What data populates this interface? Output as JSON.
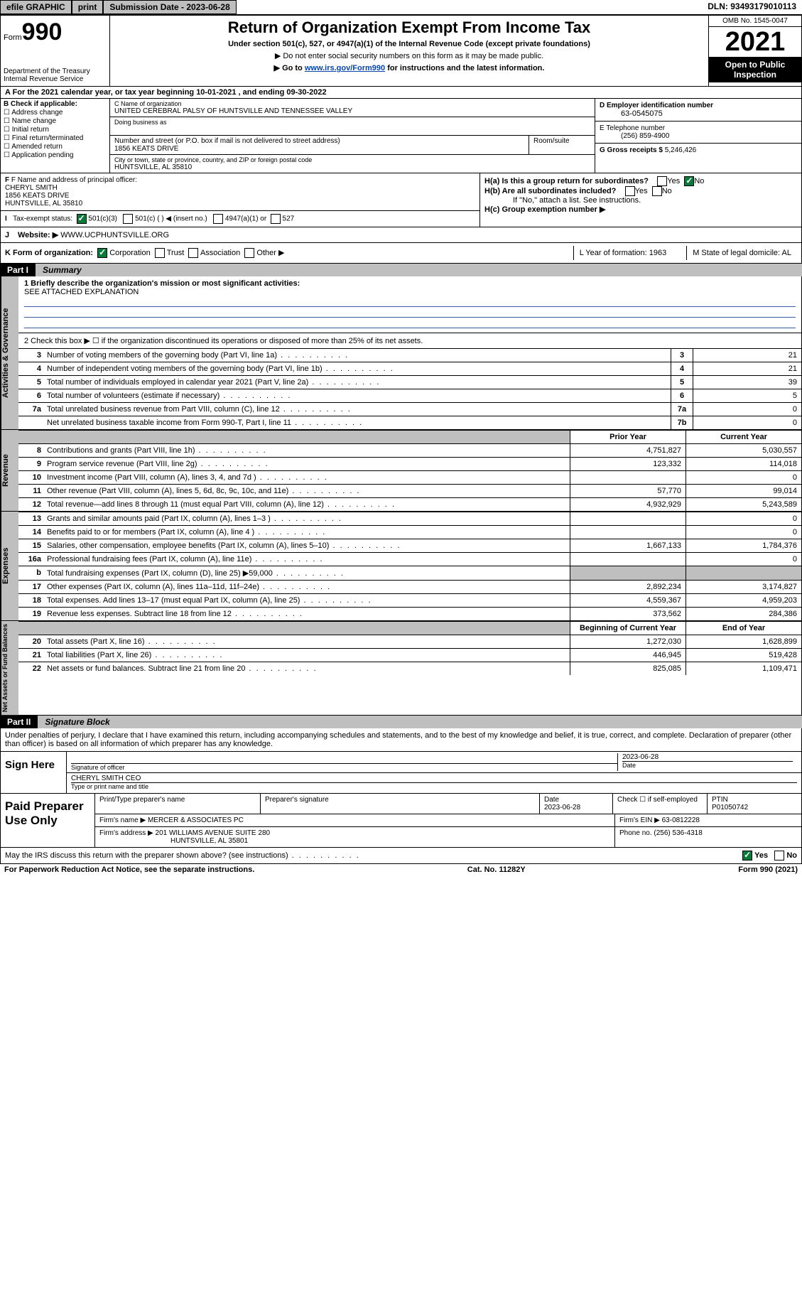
{
  "topbar": {
    "efile": "efile GRAPHIC",
    "print": "print",
    "submission": "Submission Date - 2023-06-28",
    "dln": "DLN: 93493179010113"
  },
  "header": {
    "form_word": "Form",
    "form_num": "990",
    "title": "Return of Organization Exempt From Income Tax",
    "subtitle": "Under section 501(c), 527, or 4947(a)(1) of the Internal Revenue Code (except private foundations)",
    "note1": "▶ Do not enter social security numbers on this form as it may be made public.",
    "note2_pre": "▶ Go to ",
    "note2_link": "www.irs.gov/Form990",
    "note2_post": " for instructions and the latest information.",
    "dept": "Department of the Treasury\nInternal Revenue Service",
    "omb": "OMB No. 1545-0047",
    "year": "2021",
    "open": "Open to Public Inspection"
  },
  "lineA": "A For the 2021 calendar year, or tax year beginning 10-01-2021   , and ending 09-30-2022",
  "sectionB": {
    "lbl": "B Check if applicable:",
    "chks": [
      "Address change",
      "Name change",
      "Initial return",
      "Final return/terminated",
      "Amended return",
      "Application pending"
    ],
    "c_lbl": "C Name of organization",
    "c_val": "UNITED CEREBRAL PALSY OF HUNTSVILLE AND TENNESSEE VALLEY",
    "dba_lbl": "Doing business as",
    "street_lbl": "Number and street (or P.O. box if mail is not delivered to street address)",
    "street_val": "1856 KEATS DRIVE",
    "suite_lbl": "Room/suite",
    "city_lbl": "City or town, state or province, country, and ZIP or foreign postal code",
    "city_val": "HUNTSVILLE, AL  35810",
    "d_lbl": "D Employer identification number",
    "d_val": "63-0545075",
    "e_lbl": "E Telephone number",
    "e_val": "(256) 859-4900",
    "g_lbl": "G Gross receipts $",
    "g_val": "5,246,426"
  },
  "sectionFH": {
    "f_lbl": "F Name and address of principal officer:",
    "f_name": "CHERYL SMITH",
    "f_addr1": "1856 KEATS DRIVE",
    "f_addr2": "HUNTSVILLE, AL  35810",
    "ha": "H(a)  Is this a group return for subordinates?",
    "ha_yes": "Yes",
    "ha_no": "No",
    "hb": "H(b)  Are all subordinates included?",
    "hb_note": "If \"No,\" attach a list. See instructions.",
    "hc": "H(c)  Group exemption number ▶"
  },
  "lineI": {
    "label": "Tax-exempt status:",
    "o1": "501(c)(3)",
    "o2": "501(c) (  ) ◀ (insert no.)",
    "o3": "4947(a)(1) or",
    "o4": "527"
  },
  "lineJ": {
    "label": "Website: ▶",
    "val": "WWW.UCPHUNTSVILLE.ORG"
  },
  "lineK": {
    "label": "K Form of organization:",
    "o1": "Corporation",
    "o2": "Trust",
    "o3": "Association",
    "o4": "Other ▶",
    "l": "L Year of formation: 1963",
    "m": "M State of legal domicile: AL"
  },
  "part1": {
    "label": "Part I",
    "title": "Summary",
    "q1": "1  Briefly describe the organization's mission or most significant activities:",
    "q1v": "SEE ATTACHED EXPLANATION",
    "q2": "2  Check this box ▶ ☐  if the organization discontinued its operations or disposed of more than 25% of its net assets.",
    "rows_gov": [
      {
        "n": "3",
        "t": "Number of voting members of the governing body (Part VI, line 1a)",
        "c": "3",
        "v": "21"
      },
      {
        "n": "4",
        "t": "Number of independent voting members of the governing body (Part VI, line 1b)",
        "c": "4",
        "v": "21"
      },
      {
        "n": "5",
        "t": "Total number of individuals employed in calendar year 2021 (Part V, line 2a)",
        "c": "5",
        "v": "39"
      },
      {
        "n": "6",
        "t": "Total number of volunteers (estimate if necessary)",
        "c": "6",
        "v": "5"
      },
      {
        "n": "7a",
        "t": "Total unrelated business revenue from Part VIII, column (C), line 12",
        "c": "7a",
        "v": "0"
      },
      {
        "n": "",
        "t": "Net unrelated business taxable income from Form 990-T, Part I, line 11",
        "c": "7b",
        "v": "0"
      }
    ],
    "colhdr_py": "Prior Year",
    "colhdr_cy": "Current Year",
    "rows_rev": [
      {
        "n": "8",
        "t": "Contributions and grants (Part VIII, line 1h)",
        "py": "4,751,827",
        "cy": "5,030,557"
      },
      {
        "n": "9",
        "t": "Program service revenue (Part VIII, line 2g)",
        "py": "123,332",
        "cy": "114,018"
      },
      {
        "n": "10",
        "t": "Investment income (Part VIII, column (A), lines 3, 4, and 7d )",
        "py": "",
        "cy": "0"
      },
      {
        "n": "11",
        "t": "Other revenue (Part VIII, column (A), lines 5, 6d, 8c, 9c, 10c, and 11e)",
        "py": "57,770",
        "cy": "99,014"
      },
      {
        "n": "12",
        "t": "Total revenue—add lines 8 through 11 (must equal Part VIII, column (A), line 12)",
        "py": "4,932,929",
        "cy": "5,243,589"
      }
    ],
    "rows_exp": [
      {
        "n": "13",
        "t": "Grants and similar amounts paid (Part IX, column (A), lines 1–3 )",
        "py": "",
        "cy": "0"
      },
      {
        "n": "14",
        "t": "Benefits paid to or for members (Part IX, column (A), line 4 )",
        "py": "",
        "cy": "0"
      },
      {
        "n": "15",
        "t": "Salaries, other compensation, employee benefits (Part IX, column (A), lines 5–10)",
        "py": "1,667,133",
        "cy": "1,784,376"
      },
      {
        "n": "16a",
        "t": "Professional fundraising fees (Part IX, column (A), line 11e)",
        "py": "",
        "cy": "0"
      },
      {
        "n": "b",
        "t": "Total fundraising expenses (Part IX, column (D), line 25) ▶59,000",
        "py": "GRAY",
        "cy": "GRAY"
      },
      {
        "n": "17",
        "t": "Other expenses (Part IX, column (A), lines 11a–11d, 11f–24e)",
        "py": "2,892,234",
        "cy": "3,174,827"
      },
      {
        "n": "18",
        "t": "Total expenses. Add lines 13–17 (must equal Part IX, column (A), line 25)",
        "py": "4,559,367",
        "cy": "4,959,203"
      },
      {
        "n": "19",
        "t": "Revenue less expenses. Subtract line 18 from line 12",
        "py": "373,562",
        "cy": "284,386"
      }
    ],
    "colhdr_bcy": "Beginning of Current Year",
    "colhdr_eoy": "End of Year",
    "rows_net": [
      {
        "n": "20",
        "t": "Total assets (Part X, line 16)",
        "py": "1,272,030",
        "cy": "1,628,899"
      },
      {
        "n": "21",
        "t": "Total liabilities (Part X, line 26)",
        "py": "446,945",
        "cy": "519,428"
      },
      {
        "n": "22",
        "t": "Net assets or fund balances. Subtract line 21 from line 20",
        "py": "825,085",
        "cy": "1,109,471"
      }
    ],
    "vtab_gov": "Activities & Governance",
    "vtab_rev": "Revenue",
    "vtab_exp": "Expenses",
    "vtab_net": "Net Assets or Fund Balances"
  },
  "part2": {
    "label": "Part II",
    "title": "Signature Block",
    "declare": "Under penalties of perjury, I declare that I have examined this return, including accompanying schedules and statements, and to the best of my knowledge and belief, it is true, correct, and complete. Declaration of preparer (other than officer) is based on all information of which preparer has any knowledge.",
    "signhere": "Sign Here",
    "sig_officer_lbl": "Signature of officer",
    "sig_date": "2023-06-28",
    "date_lbl": "Date",
    "officer_name": "CHERYL SMITH  CEO",
    "officer_name_lbl": "Type or print name and title",
    "paid": "Paid Preparer Use Only",
    "pp_name_lbl": "Print/Type preparer's name",
    "pp_sig_lbl": "Preparer's signature",
    "pp_date_lbl": "Date",
    "pp_date": "2023-06-28",
    "pp_chk": "Check ☐ if self-employed",
    "ptin_lbl": "PTIN",
    "ptin": "P01050742",
    "firm_name_lbl": "Firm's name   ▶",
    "firm_name": "MERCER & ASSOCIATES PC",
    "firm_ein_lbl": "Firm's EIN ▶",
    "firm_ein": "63-0812228",
    "firm_addr_lbl": "Firm's address ▶",
    "firm_addr1": "201 WILLIAMS AVENUE SUITE 280",
    "firm_addr2": "HUNTSVILLE, AL  35801",
    "phone_lbl": "Phone no.",
    "phone": "(256) 536-4318"
  },
  "bottom": {
    "q": "May the IRS discuss this return with the preparer shown above? (see instructions)",
    "yes": "Yes",
    "no": "No"
  },
  "footer": {
    "left": "For Paperwork Reduction Act Notice, see the separate instructions.",
    "mid": "Cat. No. 11282Y",
    "right": "Form 990 (2021)"
  },
  "colors": {
    "gray": "#bfbfbf",
    "link": "#0645ad",
    "blueline": "#3a5aa8",
    "green": "#0a7a3a"
  }
}
